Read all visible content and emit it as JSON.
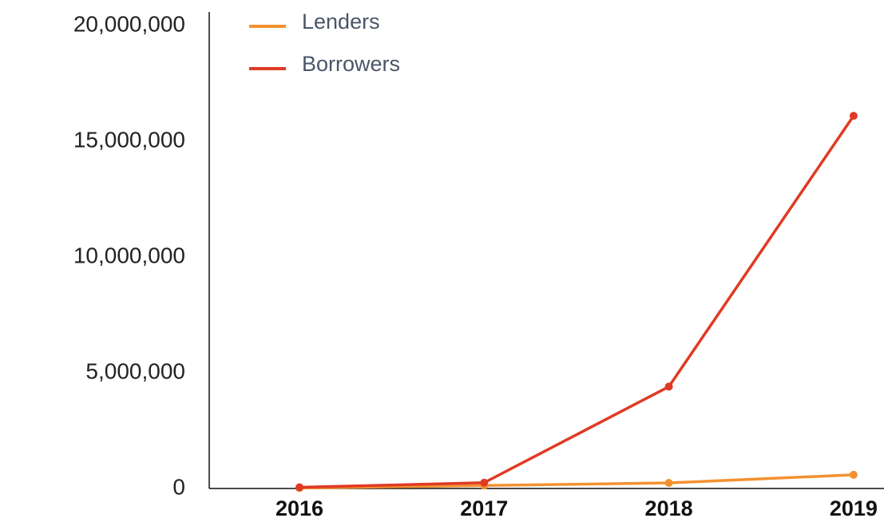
{
  "chart_data": {
    "type": "line",
    "categories": [
      "2016",
      "2017",
      "2018",
      "2019"
    ],
    "series": [
      {
        "name": "Lenders",
        "color": "#f39130",
        "values": [
          20000,
          130000,
          240000,
          590000
        ]
      },
      {
        "name": "Borrowers",
        "color": "#e03a24",
        "values": [
          50000,
          250000,
          4400000,
          16100000
        ]
      }
    ],
    "ylim": [
      0,
      20000000
    ],
    "yticks": [
      0,
      {
        "value": 5000000,
        "label": "5,000,000"
      },
      {
        "value": 10000000,
        "label": "10,000,000"
      },
      {
        "value": 15000000,
        "label": "15,000,000"
      },
      {
        "value": 20000000,
        "label": "20,000,000"
      }
    ],
    "grid": false
  }
}
